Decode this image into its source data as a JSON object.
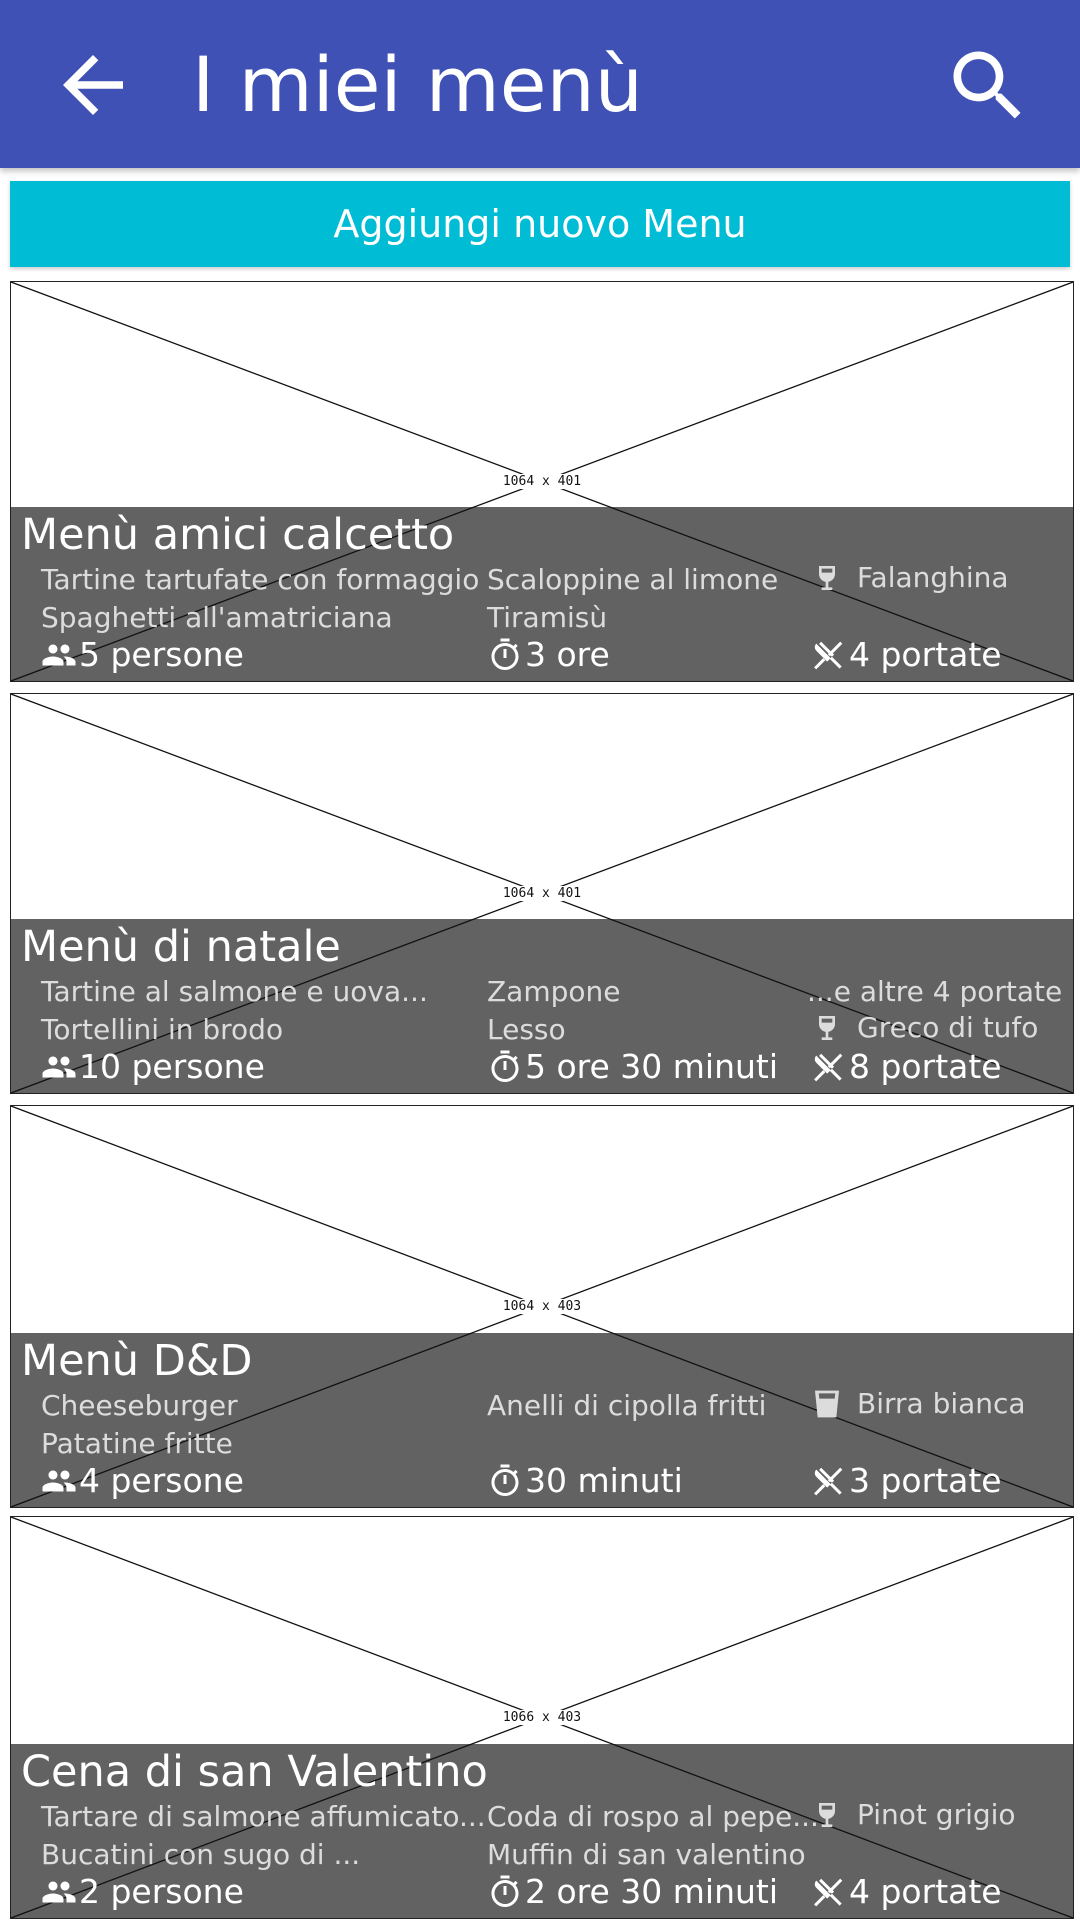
{
  "app_bar": {
    "title": "I miei menù",
    "back_icon": "arrow-back-icon",
    "search_icon": "search-icon",
    "color": "#3f51b5"
  },
  "add_button": {
    "label": "Aggiungi nuovo Menu",
    "color": "#00bcd4"
  },
  "menus": [
    {
      "title": "Menù amici calcetto",
      "image_label": "1064 x 401",
      "col1": [
        "Tartine tartufate con formaggio",
        "Spaghetti all'amatriciana"
      ],
      "col2": [
        "Scaloppine al limone",
        "Tiramisù"
      ],
      "col3_extra": "",
      "drink": "Falanghina",
      "drink_icon": "wine-glass-icon",
      "people": "5 persone",
      "duration": "3 ore",
      "courses": "4 portate"
    },
    {
      "title": "Menù di natale",
      "image_label": "1064 x 401",
      "col1": [
        "Tartine al salmone e uova...",
        "Tortellini in brodo"
      ],
      "col2": [
        "Zampone",
        "Lesso"
      ],
      "col3_extra": "...e altre 4 portate",
      "drink": "Greco di tufo",
      "drink_icon": "wine-glass-icon",
      "people": "10 persone",
      "duration": "5 ore 30 minuti",
      "courses": "8 portate"
    },
    {
      "title": "Menù D&D",
      "image_label": "1064 x 403",
      "col1": [
        "Cheeseburger",
        "Patatine fritte"
      ],
      "col2": [
        "Anelli di cipolla fritti",
        ""
      ],
      "col3_extra": "",
      "drink": "Birra bianca",
      "drink_icon": "beer-glass-icon",
      "people": "4 persone",
      "duration": "30 minuti",
      "courses": "3 portate"
    },
    {
      "title": "Cena di san Valentino",
      "image_label": "1066 x 403",
      "col1": [
        "Tartare di salmone affumicato...",
        "Bucatini con sugo di ..."
      ],
      "col2": [
        "Coda di rospo al pepe...",
        "Muffin di san valentino"
      ],
      "col3_extra": "",
      "drink": "Pinot grigio",
      "drink_icon": "wine-glass-icon",
      "people": "2 persone",
      "duration": "2 ore 30 minuti",
      "courses": "4 portate"
    }
  ]
}
